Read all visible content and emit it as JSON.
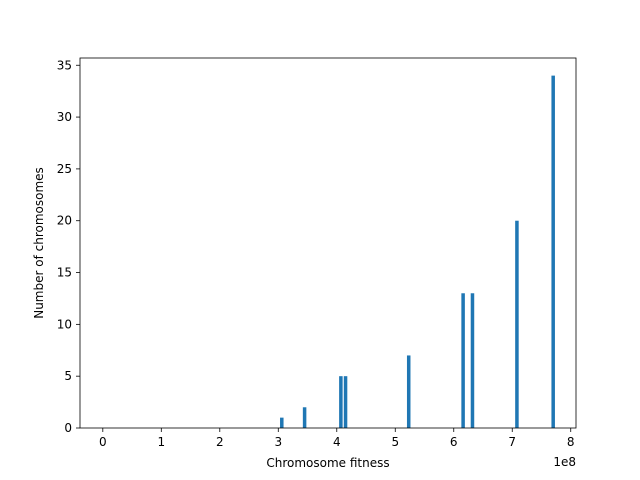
{
  "chart_data": {
    "type": "bar",
    "xlabel": "Chromosome fitness",
    "ylabel": "Number of chromosomes",
    "x_scale_label": "1e8",
    "xlim": [
      -0.39,
      8.09
    ],
    "ylim": [
      0,
      35.7
    ],
    "x_ticks": [
      0,
      1,
      2,
      3,
      4,
      5,
      6,
      7,
      8
    ],
    "y_ticks": [
      0,
      5,
      10,
      15,
      20,
      25,
      30,
      35
    ],
    "bar_color": "#1f77b4",
    "bar_width": 0.06,
    "bars": [
      {
        "x": 3.06,
        "value": 1
      },
      {
        "x": 3.45,
        "value": 2
      },
      {
        "x": 4.07,
        "value": 5
      },
      {
        "x": 4.15,
        "value": 5
      },
      {
        "x": 5.23,
        "value": 7
      },
      {
        "x": 6.16,
        "value": 13
      },
      {
        "x": 6.32,
        "value": 13
      },
      {
        "x": 7.08,
        "value": 20
      },
      {
        "x": 7.7,
        "value": 34
      }
    ],
    "grid": false
  }
}
